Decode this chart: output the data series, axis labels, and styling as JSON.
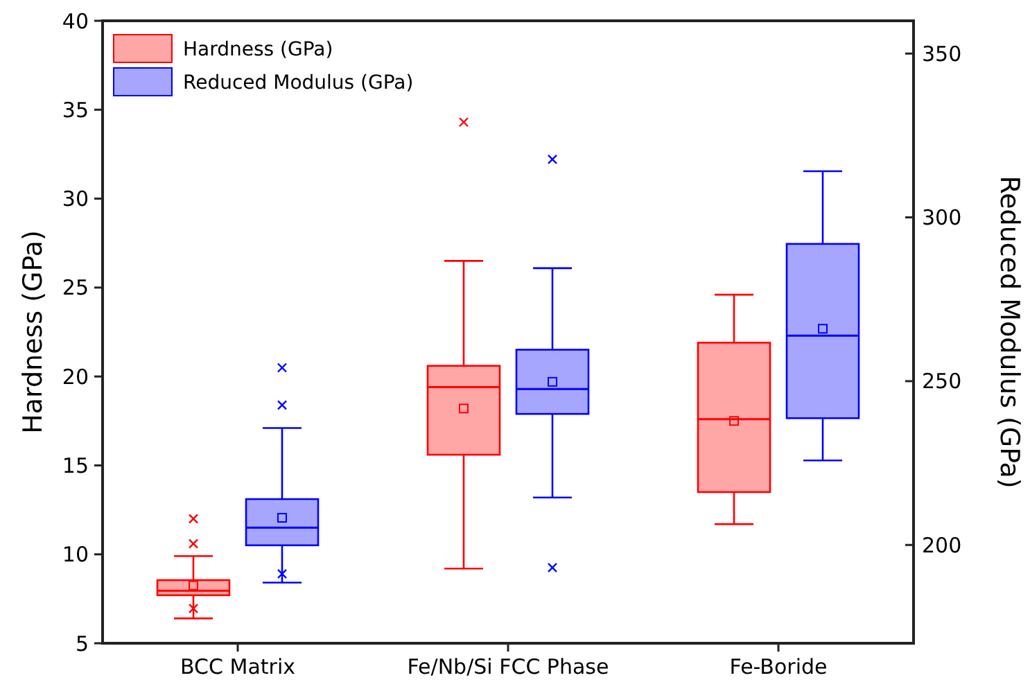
{
  "chart_data": {
    "type": "box",
    "categories": [
      "BCC Matrix",
      "Fe/Nb/Si FCC Phase",
      "Fe-Boride"
    ],
    "ylabel": "Hardness (GPa)",
    "y2label": "Reduced Modulus (GPa)",
    "ylim": [
      5,
      40
    ],
    "yticks": [
      5,
      10,
      15,
      20,
      25,
      30,
      35,
      40
    ],
    "y2lim": [
      170,
      360
    ],
    "y2ticks": [
      200,
      250,
      300,
      350
    ],
    "legend": "top left",
    "grid": false,
    "series": [
      {
        "name": "Hardness (GPa)",
        "color": "#ff0000",
        "boxes": [
          {
            "low": 6.4,
            "q1": 7.7,
            "median": 7.95,
            "q3": 8.55,
            "high": 9.9,
            "mean": 8.25,
            "outliers": [
              6.95,
              10.6,
              12.0
            ]
          },
          {
            "low": 9.2,
            "q1": 15.6,
            "median": 19.4,
            "q3": 20.6,
            "high": 26.5,
            "mean": 18.2,
            "outliers": [
              34.3
            ]
          },
          {
            "low": 11.7,
            "q1": 13.5,
            "median": 17.6,
            "q3": 21.9,
            "high": 24.6,
            "mean": 17.5
          }
        ]
      },
      {
        "name": "Reduced Modulus (GPa)",
        "color": "#0000ff",
        "axis": "y2",
        "boxes": [
          {
            "low": 188.5,
            "q1": 199.9,
            "median": 205.3,
            "q3": 214,
            "high": 235.7,
            "mean": 208.3,
            "outliers": [
              191.2,
              242.7,
              254.1
            ]
          },
          {
            "low": 214.5,
            "q1": 240,
            "median": 247.6,
            "q3": 259.6,
            "high": 284.5,
            "mean": 249.8,
            "outliers": [
              193.1,
              317.7
            ]
          },
          {
            "low": 225.8,
            "q1": 238.7,
            "median": 263.9,
            "q3": 291.9,
            "high": 314.1,
            "mean": 266
          }
        ]
      }
    ]
  }
}
